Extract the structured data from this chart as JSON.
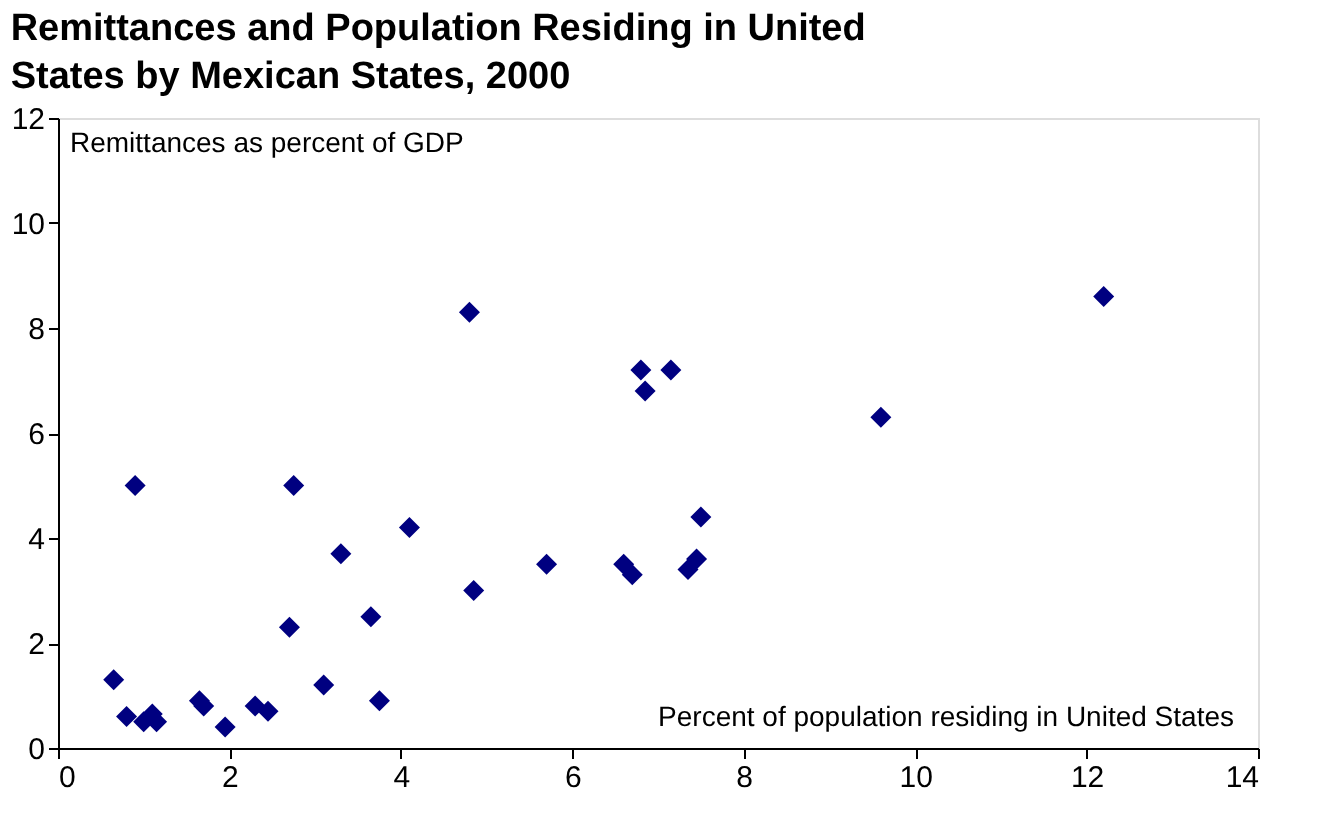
{
  "chart_data": {
    "type": "scatter",
    "title": "Remittances and Population Residing in United States by Mexican States, 2000",
    "xlabel": "Percent of population residing in United States",
    "ylabel": "Remittances as percent of GDP",
    "x": [
      0.65,
      0.8,
      0.9,
      1.0,
      1.1,
      1.15,
      1.65,
      1.7,
      1.95,
      2.3,
      2.45,
      2.7,
      2.75,
      3.1,
      3.3,
      3.65,
      3.75,
      4.1,
      4.8,
      4.85,
      5.7,
      6.6,
      6.7,
      6.8,
      6.85,
      7.15,
      7.35,
      7.45,
      7.5,
      9.6,
      12.2
    ],
    "series": [
      {
        "color": "#000080",
        "values": [
          1.3,
          0.6,
          5.0,
          0.5,
          0.65,
          0.5,
          0.9,
          0.8,
          0.4,
          0.8,
          0.7,
          2.3,
          5.0,
          1.2,
          3.7,
          2.5,
          0.9,
          4.2,
          8.3,
          3.0,
          3.5,
          3.5,
          3.3,
          7.2,
          6.8,
          7.2,
          3.4,
          3.6,
          4.4,
          6.3,
          8.6
        ]
      }
    ],
    "xlim": [
      0,
      14
    ],
    "xticks": [
      0,
      2,
      4,
      6,
      8,
      10,
      12,
      14
    ],
    "ylim": [
      0,
      12
    ],
    "yticks": [
      0,
      2,
      4,
      6,
      8,
      10,
      12
    ],
    "grid": false,
    "marker": "diamond"
  }
}
